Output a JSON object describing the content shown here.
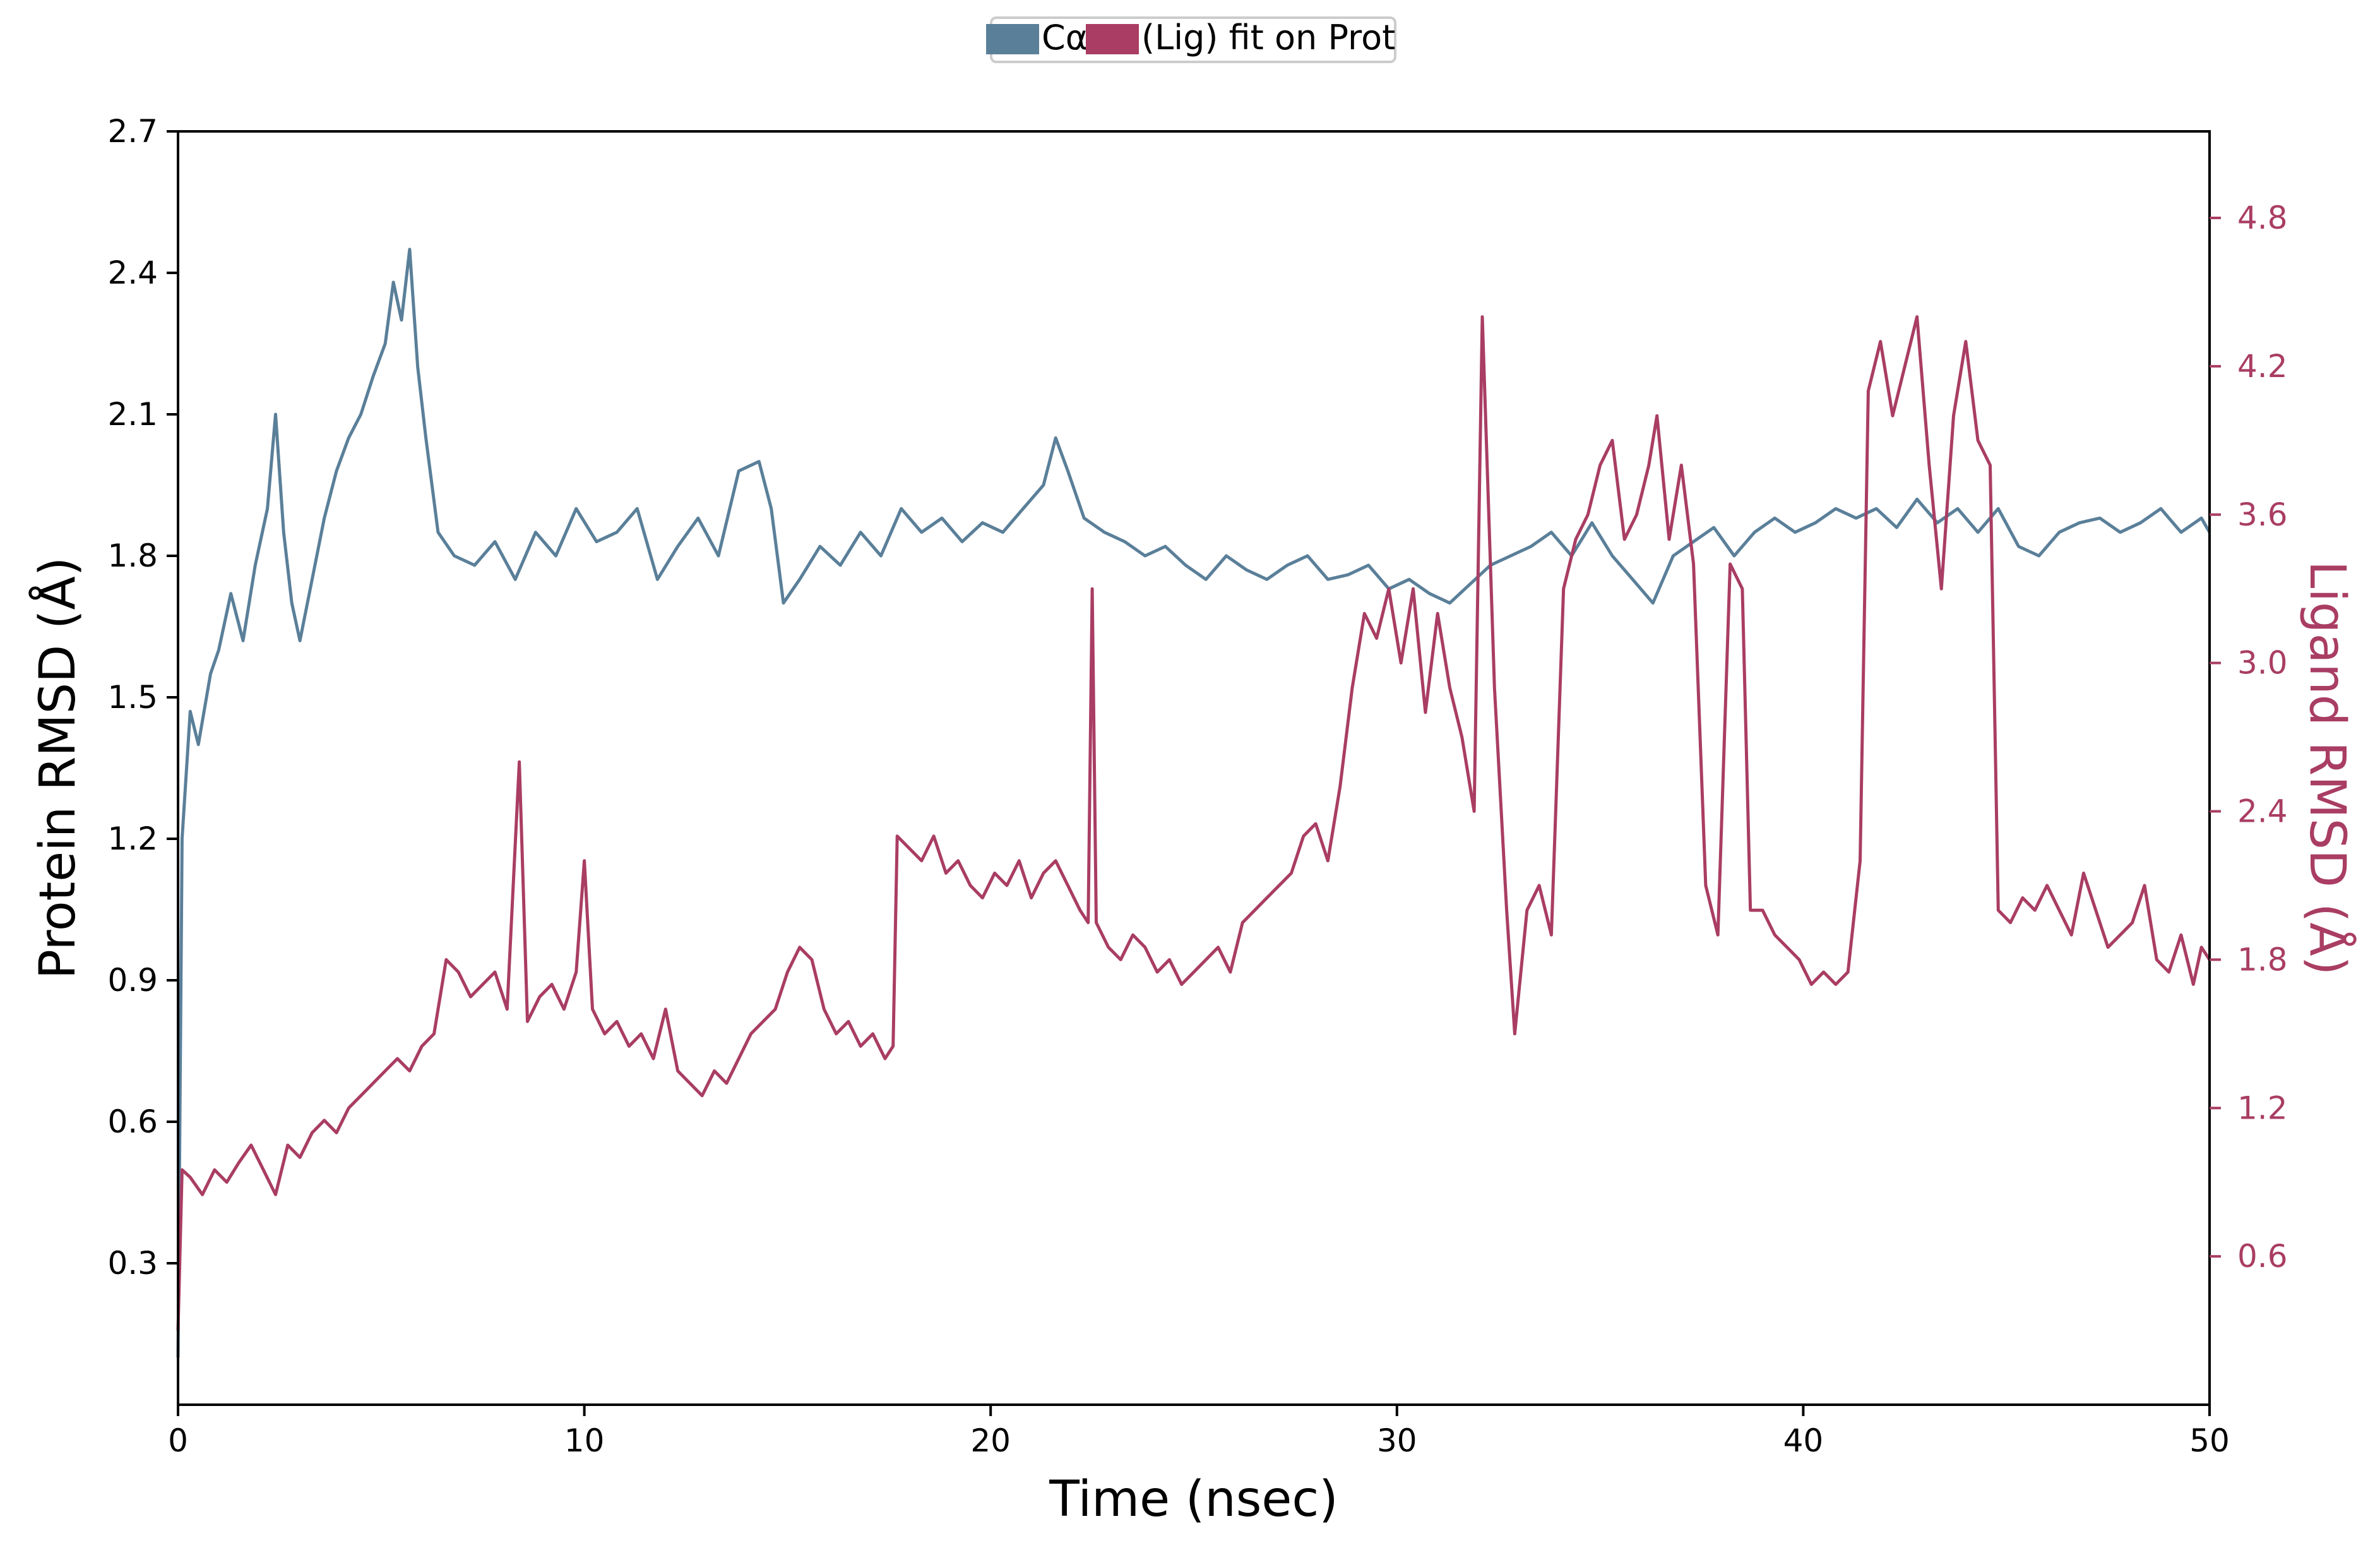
{
  "chart_data": {
    "type": "line",
    "x": {
      "label": "Time (nsec)",
      "range": [
        0,
        50
      ],
      "ticks": [
        0,
        10,
        20,
        30,
        40,
        50
      ],
      "tick_labels": [
        "0",
        "10",
        "20",
        "30",
        "40",
        "50"
      ]
    },
    "y_left": {
      "label": "Protein RMSD (Å)",
      "range": [
        0.0,
        2.7
      ],
      "ticks": [
        0.3,
        0.6,
        0.9,
        1.2,
        1.5,
        1.8,
        2.1,
        2.4,
        2.7
      ],
      "tick_labels": [
        "0.3",
        "0.6",
        "0.9",
        "1.2",
        "1.5",
        "1.8",
        "2.1",
        "2.4",
        "2.7"
      ]
    },
    "y_right": {
      "label": "Ligand RMSD (Å)",
      "range": [
        0.0,
        5.15
      ],
      "ticks": [
        0.6,
        1.2,
        1.8,
        2.4,
        3.0,
        3.6,
        4.2,
        4.8
      ],
      "tick_labels": [
        "0.6",
        "1.2",
        "1.8",
        "2.4",
        "3.0",
        "3.6",
        "4.2",
        "4.8"
      ]
    },
    "grid": false,
    "legend_position": "top-center",
    "series": [
      {
        "name": "Cα",
        "axis": "left",
        "color": "#5a7f99",
        "points": [
          [
            0.0,
            0.1
          ],
          [
            0.1,
            1.2
          ],
          [
            0.3,
            1.47
          ],
          [
            0.5,
            1.4
          ],
          [
            0.8,
            1.55
          ],
          [
            1.0,
            1.6
          ],
          [
            1.3,
            1.72
          ],
          [
            1.6,
            1.62
          ],
          [
            1.9,
            1.78
          ],
          [
            2.2,
            1.9
          ],
          [
            2.4,
            2.1
          ],
          [
            2.6,
            1.85
          ],
          [
            2.8,
            1.7
          ],
          [
            3.0,
            1.62
          ],
          [
            3.3,
            1.75
          ],
          [
            3.6,
            1.88
          ],
          [
            3.9,
            1.98
          ],
          [
            4.2,
            2.05
          ],
          [
            4.5,
            2.1
          ],
          [
            4.8,
            2.18
          ],
          [
            5.1,
            2.25
          ],
          [
            5.3,
            2.38
          ],
          [
            5.5,
            2.3
          ],
          [
            5.7,
            2.45
          ],
          [
            5.9,
            2.2
          ],
          [
            6.1,
            2.05
          ],
          [
            6.4,
            1.85
          ],
          [
            6.8,
            1.8
          ],
          [
            7.3,
            1.78
          ],
          [
            7.8,
            1.83
          ],
          [
            8.3,
            1.75
          ],
          [
            8.8,
            1.85
          ],
          [
            9.3,
            1.8
          ],
          [
            9.8,
            1.9
          ],
          [
            10.3,
            1.83
          ],
          [
            10.8,
            1.85
          ],
          [
            11.3,
            1.9
          ],
          [
            11.8,
            1.75
          ],
          [
            12.3,
            1.82
          ],
          [
            12.8,
            1.88
          ],
          [
            13.3,
            1.8
          ],
          [
            13.8,
            1.98
          ],
          [
            14.3,
            2.0
          ],
          [
            14.6,
            1.9
          ],
          [
            14.9,
            1.7
          ],
          [
            15.3,
            1.75
          ],
          [
            15.8,
            1.82
          ],
          [
            16.3,
            1.78
          ],
          [
            16.8,
            1.85
          ],
          [
            17.3,
            1.8
          ],
          [
            17.8,
            1.9
          ],
          [
            18.3,
            1.85
          ],
          [
            18.8,
            1.88
          ],
          [
            19.3,
            1.83
          ],
          [
            19.8,
            1.87
          ],
          [
            20.3,
            1.85
          ],
          [
            20.8,
            1.9
          ],
          [
            21.3,
            1.95
          ],
          [
            21.6,
            2.05
          ],
          [
            21.9,
            1.98
          ],
          [
            22.3,
            1.88
          ],
          [
            22.8,
            1.85
          ],
          [
            23.3,
            1.83
          ],
          [
            23.8,
            1.8
          ],
          [
            24.3,
            1.82
          ],
          [
            24.8,
            1.78
          ],
          [
            25.3,
            1.75
          ],
          [
            25.8,
            1.8
          ],
          [
            26.3,
            1.77
          ],
          [
            26.8,
            1.75
          ],
          [
            27.3,
            1.78
          ],
          [
            27.8,
            1.8
          ],
          [
            28.3,
            1.75
          ],
          [
            28.8,
            1.76
          ],
          [
            29.3,
            1.78
          ],
          [
            29.8,
            1.73
          ],
          [
            30.3,
            1.75
          ],
          [
            30.8,
            1.72
          ],
          [
            31.3,
            1.7
          ],
          [
            31.8,
            1.74
          ],
          [
            32.3,
            1.78
          ],
          [
            32.8,
            1.8
          ],
          [
            33.3,
            1.82
          ],
          [
            33.8,
            1.85
          ],
          [
            34.3,
            1.8
          ],
          [
            34.8,
            1.87
          ],
          [
            35.3,
            1.8
          ],
          [
            35.8,
            1.75
          ],
          [
            36.3,
            1.7
          ],
          [
            36.8,
            1.8
          ],
          [
            37.3,
            1.83
          ],
          [
            37.8,
            1.86
          ],
          [
            38.3,
            1.8
          ],
          [
            38.8,
            1.85
          ],
          [
            39.3,
            1.88
          ],
          [
            39.8,
            1.85
          ],
          [
            40.3,
            1.87
          ],
          [
            40.8,
            1.9
          ],
          [
            41.3,
            1.88
          ],
          [
            41.8,
            1.9
          ],
          [
            42.3,
            1.86
          ],
          [
            42.8,
            1.92
          ],
          [
            43.3,
            1.87
          ],
          [
            43.8,
            1.9
          ],
          [
            44.3,
            1.85
          ],
          [
            44.8,
            1.9
          ],
          [
            45.3,
            1.82
          ],
          [
            45.8,
            1.8
          ],
          [
            46.3,
            1.85
          ],
          [
            46.8,
            1.87
          ],
          [
            47.3,
            1.88
          ],
          [
            47.8,
            1.85
          ],
          [
            48.3,
            1.87
          ],
          [
            48.8,
            1.9
          ],
          [
            49.3,
            1.85
          ],
          [
            49.8,
            1.88
          ],
          [
            50.0,
            1.85
          ]
        ]
      },
      {
        "name": "(Lig) fit on Prot",
        "axis": "right",
        "color": "#a93d63",
        "points": [
          [
            0.0,
            0.3
          ],
          [
            0.1,
            0.95
          ],
          [
            0.3,
            0.92
          ],
          [
            0.6,
            0.85
          ],
          [
            0.9,
            0.95
          ],
          [
            1.2,
            0.9
          ],
          [
            1.5,
            0.98
          ],
          [
            1.8,
            1.05
          ],
          [
            2.1,
            0.95
          ],
          [
            2.4,
            0.85
          ],
          [
            2.7,
            1.05
          ],
          [
            3.0,
            1.0
          ],
          [
            3.3,
            1.1
          ],
          [
            3.6,
            1.15
          ],
          [
            3.9,
            1.1
          ],
          [
            4.2,
            1.2
          ],
          [
            4.5,
            1.25
          ],
          [
            4.8,
            1.3
          ],
          [
            5.1,
            1.35
          ],
          [
            5.4,
            1.4
          ],
          [
            5.7,
            1.35
          ],
          [
            6.0,
            1.45
          ],
          [
            6.3,
            1.5
          ],
          [
            6.6,
            1.8
          ],
          [
            6.9,
            1.75
          ],
          [
            7.2,
            1.65
          ],
          [
            7.5,
            1.7
          ],
          [
            7.8,
            1.75
          ],
          [
            8.1,
            1.6
          ],
          [
            8.4,
            2.6
          ],
          [
            8.6,
            1.55
          ],
          [
            8.9,
            1.65
          ],
          [
            9.2,
            1.7
          ],
          [
            9.5,
            1.6
          ],
          [
            9.8,
            1.75
          ],
          [
            10.0,
            2.2
          ],
          [
            10.2,
            1.6
          ],
          [
            10.5,
            1.5
          ],
          [
            10.8,
            1.55
          ],
          [
            11.1,
            1.45
          ],
          [
            11.4,
            1.5
          ],
          [
            11.7,
            1.4
          ],
          [
            12.0,
            1.6
          ],
          [
            12.3,
            1.35
          ],
          [
            12.6,
            1.3
          ],
          [
            12.9,
            1.25
          ],
          [
            13.2,
            1.35
          ],
          [
            13.5,
            1.3
          ],
          [
            13.8,
            1.4
          ],
          [
            14.1,
            1.5
          ],
          [
            14.4,
            1.55
          ],
          [
            14.7,
            1.6
          ],
          [
            15.0,
            1.75
          ],
          [
            15.3,
            1.85
          ],
          [
            15.6,
            1.8
          ],
          [
            15.9,
            1.6
          ],
          [
            16.2,
            1.5
          ],
          [
            16.5,
            1.55
          ],
          [
            16.8,
            1.45
          ],
          [
            17.1,
            1.5
          ],
          [
            17.4,
            1.4
          ],
          [
            17.6,
            1.45
          ],
          [
            17.7,
            2.3
          ],
          [
            18.0,
            2.25
          ],
          [
            18.3,
            2.2
          ],
          [
            18.6,
            2.3
          ],
          [
            18.9,
            2.15
          ],
          [
            19.2,
            2.2
          ],
          [
            19.5,
            2.1
          ],
          [
            19.8,
            2.05
          ],
          [
            20.1,
            2.15
          ],
          [
            20.4,
            2.1
          ],
          [
            20.7,
            2.2
          ],
          [
            21.0,
            2.05
          ],
          [
            21.3,
            2.15
          ],
          [
            21.6,
            2.2
          ],
          [
            21.9,
            2.1
          ],
          [
            22.2,
            2.0
          ],
          [
            22.4,
            1.95
          ],
          [
            22.5,
            3.3
          ],
          [
            22.6,
            1.95
          ],
          [
            22.9,
            1.85
          ],
          [
            23.2,
            1.8
          ],
          [
            23.5,
            1.9
          ],
          [
            23.8,
            1.85
          ],
          [
            24.1,
            1.75
          ],
          [
            24.4,
            1.8
          ],
          [
            24.7,
            1.7
          ],
          [
            25.0,
            1.75
          ],
          [
            25.3,
            1.8
          ],
          [
            25.6,
            1.85
          ],
          [
            25.9,
            1.75
          ],
          [
            26.2,
            1.95
          ],
          [
            26.5,
            2.0
          ],
          [
            26.8,
            2.05
          ],
          [
            27.1,
            2.1
          ],
          [
            27.4,
            2.15
          ],
          [
            27.7,
            2.3
          ],
          [
            28.0,
            2.35
          ],
          [
            28.3,
            2.2
          ],
          [
            28.6,
            2.5
          ],
          [
            28.9,
            2.9
          ],
          [
            29.2,
            3.2
          ],
          [
            29.5,
            3.1
          ],
          [
            29.8,
            3.3
          ],
          [
            30.1,
            3.0
          ],
          [
            30.4,
            3.3
          ],
          [
            30.7,
            2.8
          ],
          [
            31.0,
            3.2
          ],
          [
            31.3,
            2.9
          ],
          [
            31.6,
            2.7
          ],
          [
            31.9,
            2.4
          ],
          [
            32.1,
            4.4
          ],
          [
            32.4,
            2.9
          ],
          [
            32.7,
            2.0
          ],
          [
            32.9,
            1.5
          ],
          [
            33.2,
            2.0
          ],
          [
            33.5,
            2.1
          ],
          [
            33.8,
            1.9
          ],
          [
            34.1,
            3.3
          ],
          [
            34.4,
            3.5
          ],
          [
            34.7,
            3.6
          ],
          [
            35.0,
            3.8
          ],
          [
            35.3,
            3.9
          ],
          [
            35.6,
            3.5
          ],
          [
            35.9,
            3.6
          ],
          [
            36.2,
            3.8
          ],
          [
            36.4,
            4.0
          ],
          [
            36.7,
            3.5
          ],
          [
            37.0,
            3.8
          ],
          [
            37.3,
            3.4
          ],
          [
            37.6,
            2.1
          ],
          [
            37.9,
            1.9
          ],
          [
            38.2,
            3.4
          ],
          [
            38.5,
            3.3
          ],
          [
            38.7,
            2.0
          ],
          [
            39.0,
            2.0
          ],
          [
            39.3,
            1.9
          ],
          [
            39.6,
            1.85
          ],
          [
            39.9,
            1.8
          ],
          [
            40.2,
            1.7
          ],
          [
            40.5,
            1.75
          ],
          [
            40.8,
            1.7
          ],
          [
            41.1,
            1.75
          ],
          [
            41.4,
            2.2
          ],
          [
            41.6,
            4.1
          ],
          [
            41.9,
            4.3
          ],
          [
            42.2,
            4.0
          ],
          [
            42.5,
            4.2
          ],
          [
            42.8,
            4.4
          ],
          [
            43.1,
            3.8
          ],
          [
            43.4,
            3.3
          ],
          [
            43.7,
            4.0
          ],
          [
            44.0,
            4.3
          ],
          [
            44.3,
            3.9
          ],
          [
            44.6,
            3.8
          ],
          [
            44.8,
            2.0
          ],
          [
            45.1,
            1.95
          ],
          [
            45.4,
            2.05
          ],
          [
            45.7,
            2.0
          ],
          [
            46.0,
            2.1
          ],
          [
            46.3,
            2.0
          ],
          [
            46.6,
            1.9
          ],
          [
            46.9,
            2.15
          ],
          [
            47.2,
            2.0
          ],
          [
            47.5,
            1.85
          ],
          [
            47.8,
            1.9
          ],
          [
            48.1,
            1.95
          ],
          [
            48.4,
            2.1
          ],
          [
            48.7,
            1.8
          ],
          [
            49.0,
            1.75
          ],
          [
            49.3,
            1.9
          ],
          [
            49.6,
            1.7
          ],
          [
            49.8,
            1.85
          ],
          [
            50.0,
            1.8
          ]
        ]
      }
    ]
  }
}
